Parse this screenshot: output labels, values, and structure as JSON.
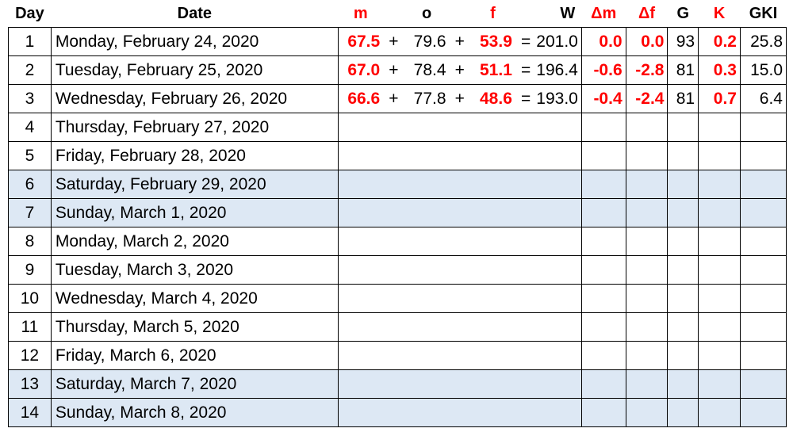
{
  "headers": {
    "day": "Day",
    "date": "Date",
    "m": "m",
    "o": "o",
    "f": "f",
    "w": "W",
    "dm": "Δm",
    "df": "Δf",
    "g": "G",
    "k": "K",
    "gki": "GKI"
  },
  "operators": {
    "plus": "+",
    "equals": "="
  },
  "rows": [
    {
      "day": "1",
      "date": "Monday, February 24, 2020",
      "m": "67.5",
      "o": "79.6",
      "f": "53.9",
      "w": "201.0",
      "dm": "0.0",
      "df": "0.0",
      "g": "93",
      "k": "0.2",
      "gki": "25.8",
      "weekend": false
    },
    {
      "day": "2",
      "date": "Tuesday, February 25, 2020",
      "m": "67.0",
      "o": "78.4",
      "f": "51.1",
      "w": "196.4",
      "dm": "-0.6",
      "df": "-2.8",
      "g": "81",
      "k": "0.3",
      "gki": "15.0",
      "weekend": false
    },
    {
      "day": "3",
      "date": "Wednesday, February 26, 2020",
      "m": "66.6",
      "o": "77.8",
      "f": "48.6",
      "w": "193.0",
      "dm": "-0.4",
      "df": "-2.4",
      "g": "81",
      "k": "0.7",
      "gki": "6.4",
      "weekend": false
    },
    {
      "day": "4",
      "date": "Thursday, February 27, 2020",
      "weekend": false
    },
    {
      "day": "5",
      "date": "Friday, February 28, 2020",
      "weekend": false
    },
    {
      "day": "6",
      "date": "Saturday, February 29, 2020",
      "weekend": true
    },
    {
      "day": "7",
      "date": "Sunday, March 1, 2020",
      "weekend": true
    },
    {
      "day": "8",
      "date": "Monday, March 2, 2020",
      "weekend": false
    },
    {
      "day": "9",
      "date": "Tuesday, March 3, 2020",
      "weekend": false
    },
    {
      "day": "10",
      "date": "Wednesday, March 4, 2020",
      "weekend": false
    },
    {
      "day": "11",
      "date": "Thursday, March 5, 2020",
      "weekend": false
    },
    {
      "day": "12",
      "date": "Friday, March 6, 2020",
      "weekend": false
    },
    {
      "day": "13",
      "date": "Saturday, March 7, 2020",
      "weekend": true
    },
    {
      "day": "14",
      "date": "Sunday, March 8, 2020",
      "weekend": true
    }
  ],
  "colors": {
    "highlight_text": "#ff0000",
    "weekend_fill": "#dde8f4",
    "grid": "#000000"
  }
}
